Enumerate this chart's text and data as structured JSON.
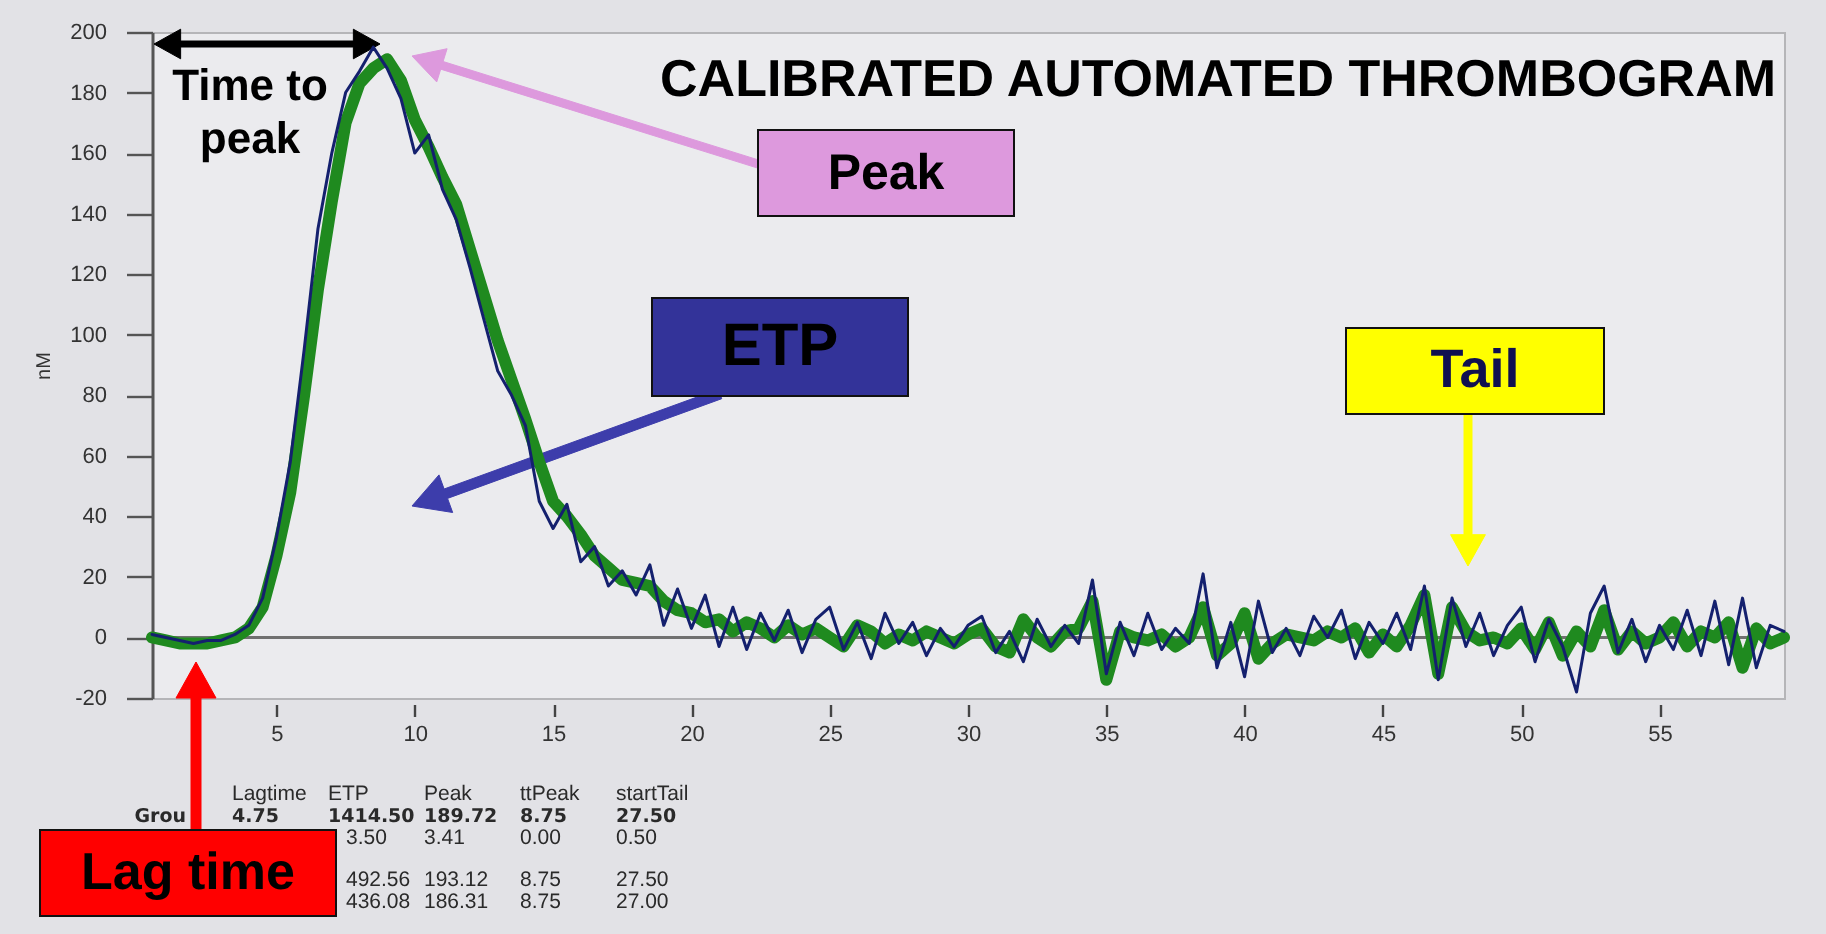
{
  "chart_data": {
    "type": "line",
    "title": "CALIBRATED AUTOMATED THROMBOGRAM",
    "ylabel": "nM",
    "x": [
      0.5,
      1,
      1.5,
      2,
      2.5,
      3,
      3.5,
      4,
      4.5,
      5,
      5.5,
      6,
      6.5,
      7,
      7.5,
      8,
      8.5,
      9,
      9.5,
      10,
      10.5,
      11,
      11.5,
      12,
      12.5,
      13,
      13.5,
      14,
      14.5,
      15,
      15.5,
      16,
      16.5,
      17,
      17.5,
      18,
      18.5,
      19,
      19.5,
      20,
      20.5,
      21,
      21.5,
      22,
      22.5,
      23,
      23.5,
      24,
      24.5,
      25,
      25.5,
      26,
      26.5,
      27,
      27.5,
      28,
      28.5,
      29,
      29.5,
      30,
      30.5,
      31,
      31.5,
      32,
      32.5,
      33,
      33.5,
      34,
      34.5,
      35,
      35.5,
      36,
      36.5,
      37,
      37.5,
      38,
      38.5,
      39,
      39.5,
      40,
      40.5,
      41,
      41.5,
      42,
      42.5,
      43,
      43.5,
      44,
      44.5,
      45,
      45.5,
      46,
      46.5,
      47,
      47.5,
      48,
      48.5,
      49,
      49.5,
      50,
      50.5,
      51,
      51.5,
      52,
      52.5,
      53,
      53.5,
      54,
      54.5,
      55,
      55.5,
      56,
      56.5,
      57,
      57.5,
      58,
      58.5,
      59,
      59.5
    ],
    "series": [
      {
        "color": "#1f8a1f",
        "values": [
          0,
          -1,
          -2,
          -2,
          -2,
          -1,
          0,
          3,
          10,
          27,
          48,
          80,
          115,
          144,
          170,
          183,
          188,
          191,
          184,
          171,
          162,
          152,
          143,
          128,
          113,
          98,
          85,
          72,
          58,
          45,
          40,
          34,
          27,
          23,
          19,
          18,
          17,
          12,
          9,
          8,
          5,
          6,
          2,
          5,
          3,
          0,
          4,
          1,
          3,
          0,
          -3,
          4,
          2,
          -2,
          1,
          -1,
          2,
          0,
          -2,
          1,
          3,
          -3,
          -5,
          6,
          0,
          -3,
          2,
          3,
          12,
          -14,
          2,
          0,
          -1,
          1,
          -3,
          0,
          10,
          -6,
          -2,
          8,
          -7,
          -2,
          1,
          0,
          -1,
          2,
          0,
          3,
          -5,
          1,
          -3,
          4,
          14,
          -12,
          10,
          2,
          -1,
          0,
          -2,
          3,
          -4,
          5,
          -6,
          2,
          -3,
          9,
          -4,
          2,
          -2,
          0,
          5,
          -3,
          2,
          0,
          5,
          -10,
          3,
          -2,
          0
        ]
      },
      {
        "color": "#14206e",
        "values": [
          1,
          0,
          -1,
          -2,
          -1,
          -1,
          1,
          4,
          13,
          33,
          58,
          95,
          135,
          160,
          180,
          187,
          195,
          188,
          178,
          160,
          166,
          148,
          138,
          122,
          105,
          88,
          80,
          70,
          45,
          36,
          44,
          25,
          30,
          17,
          22,
          14,
          24,
          4,
          16,
          3,
          14,
          -3,
          10,
          -4,
          8,
          -1,
          9,
          -5,
          6,
          10,
          -4,
          5,
          -7,
          8,
          -2,
          5,
          -6,
          3,
          -3,
          4,
          7,
          -5,
          2,
          -8,
          6,
          -3,
          4,
          -2,
          19,
          -12,
          5,
          -6,
          8,
          -4,
          3,
          -2,
          21,
          -10,
          5,
          -13,
          12,
          -5,
          3,
          -6,
          7,
          0,
          9,
          -7,
          5,
          -2,
          8,
          -4,
          17,
          -14,
          13,
          -3,
          8,
          -6,
          4,
          10,
          -8,
          6,
          -3,
          -18,
          8,
          17,
          -5,
          6,
          -8,
          4,
          -4,
          9,
          -6,
          12,
          -9,
          13,
          -10,
          4,
          2
        ]
      }
    ],
    "xlim": [
      0.5,
      59.5
    ],
    "xticks": [
      5,
      10,
      15,
      20,
      25,
      30,
      35,
      40,
      45,
      50,
      55
    ],
    "ylim": [
      -20,
      200
    ],
    "yticks": [
      -20,
      0,
      20,
      40,
      60,
      80,
      100,
      120,
      140,
      160,
      180,
      200
    ],
    "ref_lines": [
      {
        "axis": "y",
        "value": 0,
        "color": "#707070"
      }
    ],
    "annotations": [
      "Time to peak",
      "Peak",
      "ETP",
      "Tail",
      "Lag time",
      "Lagtime",
      "ETP",
      "Peak",
      "ttPeak",
      "startTail",
      "Grou",
      "4.75",
      "1414.50",
      "189.72",
      "8.75",
      "27.50",
      "3.50",
      "3.41",
      "0.00",
      "0.50",
      "492.56",
      "193.12",
      "8.75",
      "27.50",
      "436.08",
      "186.31",
      "8.75",
      "27.00"
    ]
  }
}
